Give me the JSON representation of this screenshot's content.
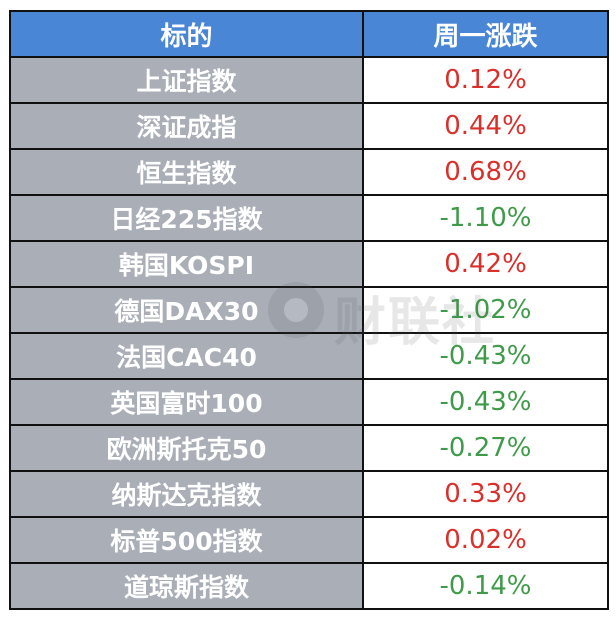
{
  "table": {
    "headers": [
      "标的",
      "周一涨跌"
    ],
    "rows": [
      {
        "name": "上证指数",
        "change": "0.12%",
        "direction": "up"
      },
      {
        "name": "深证成指",
        "change": "0.44%",
        "direction": "up"
      },
      {
        "name": "恒生指数",
        "change": "0.68%",
        "direction": "up"
      },
      {
        "name": "日经225指数",
        "change": "-1.10%",
        "direction": "down"
      },
      {
        "name": "韩国KOSPI",
        "change": "0.42%",
        "direction": "up"
      },
      {
        "name": "德国DAX30",
        "change": "-1.02%",
        "direction": "down"
      },
      {
        "name": "法国CAC40",
        "change": "-0.43%",
        "direction": "down"
      },
      {
        "name": "英国富时100",
        "change": "-0.43%",
        "direction": "down"
      },
      {
        "name": "欧洲斯托克50",
        "change": "-0.27%",
        "direction": "down"
      },
      {
        "name": "纳斯达克指数",
        "change": "0.33%",
        "direction": "up"
      },
      {
        "name": "标普500指数",
        "change": "0.02%",
        "direction": "up"
      },
      {
        "name": "道琼斯指数",
        "change": "-0.14%",
        "direction": "down"
      }
    ]
  },
  "colors": {
    "header_bg": "#4a86d6",
    "name_bg": "#a9aeb7",
    "up": "#d9302c",
    "down": "#3f9b4a"
  },
  "watermark": {
    "text": "财联社"
  }
}
